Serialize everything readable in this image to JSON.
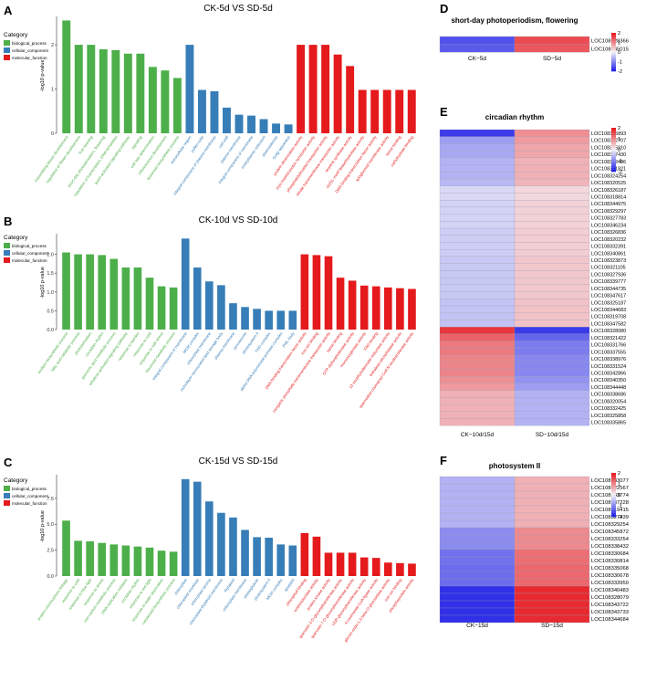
{
  "colors": {
    "biological_process": "#4DAF4A",
    "cellular_component": "#377EB8",
    "molecular_function": "#E41A1C",
    "heat_low": "#1A1AE6",
    "heat_mid": "#F4F4F8",
    "heat_high": "#E6141A"
  },
  "chart_data": [
    {
      "panel": "A",
      "type": "bar",
      "title": "CK-5d VS SD-5d",
      "ylabel": "-log10 p-value",
      "ylim": [
        0,
        2.6
      ],
      "yticks": [
        0,
        1,
        2
      ],
      "legend_title": "Category",
      "legend": [
        "biological_process",
        "cellular_component",
        "molecular_function"
      ],
      "bars": [
        {
          "label": "transmitting tissue development",
          "value": 2.55,
          "category": "biological_process"
        },
        {
          "label": "regulation of flower development",
          "value": 2.0,
          "category": "biological_process"
        },
        {
          "label": "fruit ripening",
          "value": 2.0,
          "category": "biological_process"
        },
        {
          "label": "short-day photoperiodism, flowering",
          "value": 1.9,
          "category": "biological_process"
        },
        {
          "label": "regulation of transcription, DNA-templated",
          "value": 1.88,
          "category": "biological_process"
        },
        {
          "label": "auxin-activated signaling pathway",
          "value": 1.8,
          "category": "biological_process"
        },
        {
          "label": "signaling",
          "value": 1.8,
          "category": "biological_process"
        },
        {
          "label": "cell fate determination",
          "value": 1.5,
          "category": "biological_process"
        },
        {
          "label": "inflorescence development",
          "value": 1.42,
          "category": "biological_process"
        },
        {
          "label": "terpenoid biosynthetic process",
          "value": 1.25,
          "category": "biological_process"
        },
        {
          "label": "extracellular region",
          "value": 2.0,
          "category": "cellular_component"
        },
        {
          "label": "pollen tube",
          "value": 0.98,
          "category": "cellular_component"
        },
        {
          "label": "integral component of plasma membrane",
          "value": 0.95,
          "category": "cellular_component"
        },
        {
          "label": "cell wall",
          "value": 0.58,
          "category": "cellular_component"
        },
        {
          "label": "plasma membrane",
          "value": 0.42,
          "category": "cellular_component"
        },
        {
          "label": "integral component of membrane",
          "value": 0.4,
          "category": "cellular_component"
        },
        {
          "label": "endoplasmic reticulum",
          "value": 0.32,
          "category": "cellular_component"
        },
        {
          "label": "plasmodesma",
          "value": 0.22,
          "category": "cellular_component"
        },
        {
          "label": "Golgi apparatus",
          "value": 0.2,
          "category": "cellular_component"
        },
        {
          "label": "protein dimerization activity",
          "value": 2.0,
          "category": "molecular_function"
        },
        {
          "label": "myo-inositol:proton symporter activity",
          "value": 2.0,
          "category": "molecular_function"
        },
        {
          "label": "phosphatidylinositol transporter activity",
          "value": 2.0,
          "category": "molecular_function"
        },
        {
          "label": "nitrate transmembrane transporter activity",
          "value": 1.78,
          "category": "molecular_function"
        },
        {
          "label": "terpene synthase activity",
          "value": 1.52,
          "category": "molecular_function"
        },
        {
          "label": "GDSL-motif lipase/hydrolase activity",
          "value": 0.98,
          "category": "molecular_function"
        },
        {
          "label": "DNA-binding transcription factor activity",
          "value": 0.98,
          "category": "molecular_function"
        },
        {
          "label": "xyloglucosyl transferase activity",
          "value": 0.98,
          "category": "molecular_function"
        },
        {
          "label": "heme binding",
          "value": 0.98,
          "category": "molecular_function"
        },
        {
          "label": "carbohydrate binding",
          "value": 0.98,
          "category": "molecular_function"
        }
      ]
    },
    {
      "panel": "B",
      "type": "bar",
      "title": "CK-10d VS SD-10d",
      "ylabel": "-log10 p-value",
      "ylim": [
        0,
        2.5
      ],
      "yticks": [
        0.0,
        0.5,
        1.0,
        1.5,
        2.0
      ],
      "legend_title": "Category",
      "legend": [
        "biological_process",
        "cellular_component",
        "molecular_function"
      ],
      "bars": [
        {
          "label": "oxylipin biosynthetic process",
          "value": 2.05,
          "category": "biological_process"
        },
        {
          "label": "fatty acid catabolic process",
          "value": 2.0,
          "category": "biological_process"
        },
        {
          "label": "photoperiodism",
          "value": 2.0,
          "category": "biological_process"
        },
        {
          "label": "circadian rhythm",
          "value": 1.98,
          "category": "biological_process"
        },
        {
          "label": "jasmonic acid metabolic process",
          "value": 1.88,
          "category": "biological_process"
        },
        {
          "label": "ethylene-activated signaling pathway",
          "value": 1.65,
          "category": "biological_process"
        },
        {
          "label": "response to karrikin",
          "value": 1.65,
          "category": "biological_process"
        },
        {
          "label": "response to cold",
          "value": 1.38,
          "category": "biological_process"
        },
        {
          "label": "response to salt stress",
          "value": 1.15,
          "category": "biological_process"
        },
        {
          "label": "flavonoid metabolic process",
          "value": 1.12,
          "category": "biological_process"
        },
        {
          "label": "integral component of membrane",
          "value": 2.42,
          "category": "cellular_component"
        },
        {
          "label": "MCM complex",
          "value": 1.65,
          "category": "cellular_component"
        },
        {
          "label": "chloroplast membrane",
          "value": 1.28,
          "category": "cellular_component"
        },
        {
          "label": "monolayer-surrounded lipid storage body",
          "value": 1.18,
          "category": "cellular_component"
        },
        {
          "label": "plasma membrane",
          "value": 0.7,
          "category": "cellular_component"
        },
        {
          "label": "peroxisome",
          "value": 0.6,
          "category": "cellular_component"
        },
        {
          "label": "photosystem II",
          "value": 0.55,
          "category": "cellular_component"
        },
        {
          "label": "THO complex",
          "value": 0.5,
          "category": "cellular_component"
        },
        {
          "label": "alpha DNA polymerase:primase complex",
          "value": 0.5,
          "category": "cellular_component"
        },
        {
          "label": "PML body",
          "value": 0.5,
          "category": "cellular_component"
        },
        {
          "label": "DNA-binding transcription factor activity",
          "value": 2.0,
          "category": "molecular_function"
        },
        {
          "label": "iron ion binding",
          "value": 1.98,
          "category": "molecular_function"
        },
        {
          "label": "inorganic phosphate transmembrane transporter activity",
          "value": 1.95,
          "category": "molecular_function"
        },
        {
          "label": "heme binding",
          "value": 1.38,
          "category": "molecular_function"
        },
        {
          "label": "GTP diphosphokinase activity",
          "value": 1.3,
          "category": "molecular_function"
        },
        {
          "label": "monooxygenase activity",
          "value": 1.17,
          "category": "molecular_function"
        },
        {
          "label": "FAD binding",
          "value": 1.15,
          "category": "molecular_function"
        },
        {
          "label": "12-oxophytodienoate reductase activity",
          "value": 1.12,
          "category": "molecular_function"
        },
        {
          "label": "trehalose-phosphatase activity",
          "value": 1.1,
          "category": "molecular_function"
        },
        {
          "label": "spermidine:coumaroyl CoA N-acyltransferase activity",
          "value": 1.08,
          "category": "molecular_function"
        }
      ]
    },
    {
      "panel": "C",
      "type": "bar",
      "title": "CK-15d VS SD-15d",
      "ylabel": "-log10 p-value",
      "ylim": [
        0,
        9.6
      ],
      "yticks": [
        0.0,
        2.5,
        5.0,
        7.5
      ],
      "legend_title": "Category",
      "legend": [
        "biological_process",
        "cellular_component",
        "molecular_function"
      ],
      "bars": [
        {
          "label": "protein-chromophore linkage",
          "value": 5.35,
          "category": "biological_process"
        },
        {
          "label": "response to cold",
          "value": 3.4,
          "category": "biological_process"
        },
        {
          "label": "response to blue light",
          "value": 3.35,
          "category": "biological_process"
        },
        {
          "label": "response to stress",
          "value": 3.2,
          "category": "biological_process"
        },
        {
          "label": "one-carbon metabolic process",
          "value": 3.05,
          "category": "biological_process"
        },
        {
          "label": "DNA replication initiation",
          "value": 2.95,
          "category": "biological_process"
        },
        {
          "label": "circadian rhythm",
          "value": 2.85,
          "category": "biological_process"
        },
        {
          "label": "response to red light",
          "value": 2.75,
          "category": "biological_process"
        },
        {
          "label": "response to water deprivation",
          "value": 2.45,
          "category": "biological_process"
        },
        {
          "label": "carotenoid biosynthetic process",
          "value": 2.35,
          "category": "biological_process"
        },
        {
          "label": "chloroplast",
          "value": 9.35,
          "category": "cellular_component"
        },
        {
          "label": "chloroplast envelope",
          "value": 9.1,
          "category": "cellular_component"
        },
        {
          "label": "chloroplast stroma",
          "value": 7.2,
          "category": "cellular_component"
        },
        {
          "label": "chloroplast thylakoid membrane",
          "value": 6.1,
          "category": "cellular_component"
        },
        {
          "label": "thylakoid",
          "value": 5.65,
          "category": "cellular_component"
        },
        {
          "label": "chloroplast membrane",
          "value": 4.45,
          "category": "cellular_component"
        },
        {
          "label": "plastoglobule",
          "value": 3.75,
          "category": "cellular_component"
        },
        {
          "label": "photosystem II",
          "value": 3.7,
          "category": "cellular_component"
        },
        {
          "label": "MCM complex",
          "value": 3.05,
          "category": "cellular_component"
        },
        {
          "label": "apoplast",
          "value": 2.95,
          "category": "cellular_component"
        },
        {
          "label": "chlorophyll binding",
          "value": 4.15,
          "category": "molecular_function"
        },
        {
          "label": "oxidoreductase activity",
          "value": 3.8,
          "category": "molecular_function"
        },
        {
          "label": "protein kinase activity",
          "value": 2.25,
          "category": "molecular_function"
        },
        {
          "label": "quercetin 3-O-glucosyltransferase activity",
          "value": 2.25,
          "category": "molecular_function"
        },
        {
          "label": "quercetin 7-O-glucosyltransferase activity",
          "value": 2.25,
          "category": "molecular_function"
        },
        {
          "label": "UDP-glucosyltransferase activity",
          "value": 1.8,
          "category": "molecular_function"
        },
        {
          "label": "4-coumarate-CoA ligase activity",
          "value": 1.75,
          "category": "molecular_function"
        },
        {
          "label": "glucan endo-1,3-beta-D-glucosidase activity",
          "value": 1.3,
          "category": "molecular_function"
        },
        {
          "label": "iron ion binding",
          "value": 1.25,
          "category": "molecular_function"
        },
        {
          "label": "phosphoprotein activity",
          "value": 1.2,
          "category": "molecular_function"
        }
      ]
    },
    {
      "panel": "D",
      "type": "heatmap",
      "title": "short-day photoperiodism, flowering",
      "columns": [
        "CK−5d",
        "SD−5d"
      ],
      "rows": [
        "LOC108328366",
        "LOC108345015"
      ],
      "values": [
        [
          -1.5,
          1.5
        ],
        [
          -1.4,
          1.4
        ]
      ],
      "scale_ticks": [
        2,
        1,
        0,
        -1,
        -2
      ],
      "scale_range": [
        -2,
        2
      ]
    },
    {
      "panel": "E",
      "type": "heatmap",
      "title": "circadian rhythm",
      "columns": [
        "CK−10d/15d",
        "SD−10d/15d"
      ],
      "rows": [
        "LOC108325893",
        "LOC108322707",
        "LOC108345910",
        "LOC108337430",
        "LOC108332486",
        "LOC108321821",
        "LOC108324254",
        "LOC108320525",
        "LOC108326187",
        "LOC108318814",
        "LOC108344975",
        "LOC108329297",
        "LOC108327783",
        "LOC108346234",
        "LOC108326836",
        "LOC108320232",
        "LOC108332391",
        "LOC108340861",
        "LOC108323873",
        "LOC108321105",
        "LOC108327936",
        "LOC108339777",
        "LOC108344735",
        "LOC108347617",
        "LOC108325187",
        "LOC108344683",
        "LOC108319708",
        "LOC108347582",
        "LOC108328080",
        "LOC108321422",
        "LOC108331766",
        "LOC108337555",
        "LOC108338976",
        "LOC108331524",
        "LOC108342866",
        "LOC108340350",
        "LOC108344448",
        "LOC108338686",
        "LOC108320054",
        "LOC108332425",
        "LOC108325858",
        "LOC108335865"
      ],
      "values": [
        [
          -1.7,
          0.9
        ],
        [
          -0.8,
          0.8
        ],
        [
          -0.7,
          0.7
        ],
        [
          -0.7,
          0.7
        ],
        [
          -0.6,
          0.6
        ],
        [
          -0.6,
          0.6
        ],
        [
          -0.6,
          0.6
        ],
        [
          -0.55,
          0.55
        ],
        [
          -0.25,
          0.25
        ],
        [
          -0.25,
          0.25
        ],
        [
          -0.3,
          0.3
        ],
        [
          -0.3,
          0.3
        ],
        [
          -0.3,
          0.3
        ],
        [
          -0.3,
          0.3
        ],
        [
          -0.35,
          0.35
        ],
        [
          -0.35,
          0.35
        ],
        [
          -0.35,
          0.35
        ],
        [
          -0.35,
          0.35
        ],
        [
          -0.4,
          0.4
        ],
        [
          -0.4,
          0.4
        ],
        [
          -0.4,
          0.4
        ],
        [
          -0.4,
          0.4
        ],
        [
          -0.4,
          0.4
        ],
        [
          -0.4,
          0.4
        ],
        [
          -0.45,
          0.45
        ],
        [
          -0.45,
          0.45
        ],
        [
          -0.45,
          0.45
        ],
        [
          -0.45,
          0.45
        ],
        [
          1.7,
          -1.7
        ],
        [
          1.3,
          -1.3
        ],
        [
          1.1,
          -1.1
        ],
        [
          1.1,
          -1.1
        ],
        [
          1.0,
          -1.0
        ],
        [
          1.0,
          -1.0
        ],
        [
          1.0,
          -1.0
        ],
        [
          0.9,
          -0.9
        ],
        [
          0.8,
          -0.8
        ],
        [
          0.6,
          -0.6
        ],
        [
          0.6,
          -0.6
        ],
        [
          0.6,
          -0.6
        ],
        [
          0.6,
          -0.6
        ],
        [
          0.6,
          -0.6
        ]
      ],
      "scale_ticks": [
        2,
        1,
        0,
        -1,
        -2
      ],
      "scale_range": [
        -2,
        2
      ]
    },
    {
      "panel": "F",
      "type": "heatmap",
      "title": "photosystem II",
      "columns": [
        "CK−15d",
        "SD−15d"
      ],
      "rows": [
        "LOC108343077",
        "LOC108322567",
        "LOC108343774",
        "LOC108337228",
        "LOC108319415",
        "LOC108327439",
        "LOC108329254",
        "LOC108345872",
        "LOC108333254",
        "LOC108338432",
        "LOC108330684",
        "LOC108330814",
        "LOC108335068",
        "LOC108330678",
        "LOC108333950",
        "LOC108340483",
        "LOC108328079",
        "LOC108343722",
        "LOC108343733",
        "LOC108344684"
      ],
      "values": [
        [
          -0.6,
          0.6
        ],
        [
          -0.6,
          0.6
        ],
        [
          -0.6,
          0.6
        ],
        [
          -0.6,
          0.6
        ],
        [
          -0.6,
          0.6
        ],
        [
          -0.6,
          0.6
        ],
        [
          -0.6,
          0.6
        ],
        [
          -0.95,
          0.95
        ],
        [
          -0.95,
          0.95
        ],
        [
          -0.95,
          0.95
        ],
        [
          -1.2,
          1.2
        ],
        [
          -1.2,
          1.2
        ],
        [
          -1.25,
          1.25
        ],
        [
          -1.25,
          1.25
        ],
        [
          -1.25,
          1.25
        ],
        [
          -1.8,
          1.8
        ],
        [
          -1.8,
          1.8
        ],
        [
          -1.8,
          1.8
        ],
        [
          -1.8,
          1.8
        ],
        [
          -1.8,
          1.8
        ]
      ],
      "scale_ticks": [
        2,
        1,
        0,
        -1,
        -2
      ],
      "scale_range": [
        -2,
        2
      ]
    }
  ]
}
